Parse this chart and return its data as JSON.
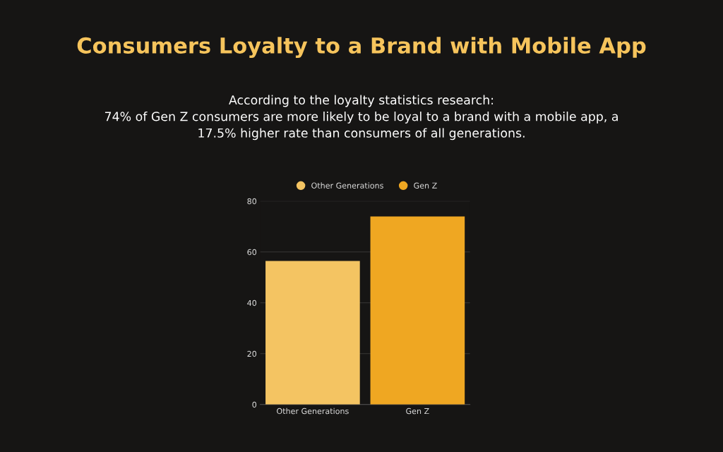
{
  "chart_data": {
    "type": "bar",
    "title": "Consumers Loyalty to a Brand with Mobile App",
    "subtitle": "According to the loyalty statistics research:\n74% of Gen Z consumers are more likely to be loyal to a brand with a mobile app, a\n17.5% higher rate than consumers of all generations.",
    "categories": [
      "Other Generations",
      "Gen Z"
    ],
    "series": [
      {
        "name": "Other Generations",
        "color": "#f4c462",
        "values": [
          56.5,
          null
        ]
      },
      {
        "name": "Gen Z",
        "color": "#efa722",
        "values": [
          null,
          74
        ]
      }
    ],
    "ylim": [
      0,
      80
    ],
    "yticks": [
      0,
      20,
      40,
      60,
      80
    ],
    "grid": "y",
    "legend": "top"
  }
}
